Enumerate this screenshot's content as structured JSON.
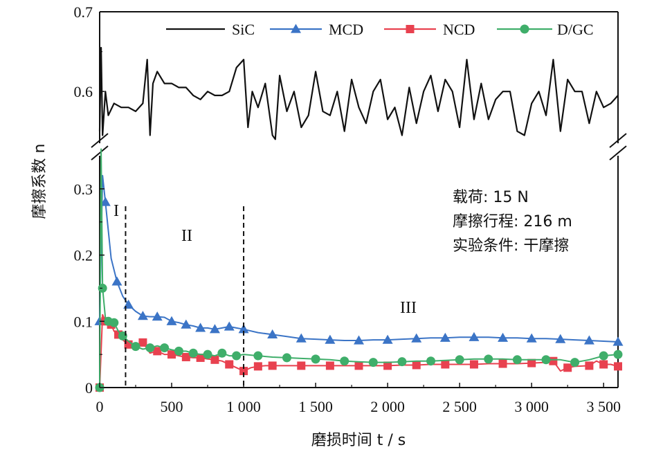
{
  "chart_data": {
    "type": "line",
    "xlabel": "磨损时间 t / s",
    "ylabel": "摩擦系数 n",
    "xlim": [
      0,
      3600
    ],
    "ylim_lower": [
      0,
      0.35
    ],
    "ylim_upper": [
      0.535,
      0.7
    ],
    "y_axis_break": true,
    "grid": false,
    "legend_position": "top-right",
    "x_ticks": [
      0,
      500,
      1000,
      1500,
      2000,
      2500,
      3000,
      3500
    ],
    "x_tick_labels": [
      "0",
      "500",
      "1 000",
      "1 500",
      "2 000",
      "2 500",
      "3 000",
      "3 500"
    ],
    "y_ticks_lower": [
      0,
      0.1,
      0.2,
      0.3
    ],
    "y_tick_labels_lower": [
      "0",
      "0.1",
      "0.2",
      "0.3"
    ],
    "y_ticks_upper": [
      0.6,
      0.7
    ],
    "y_tick_labels_upper": [
      "0.6",
      "0.7"
    ],
    "series": [
      {
        "name": "SiC",
        "color": "#111111",
        "marker": "none",
        "x": [
          0,
          10,
          20,
          40,
          60,
          100,
          150,
          200,
          250,
          300,
          330,
          350,
          370,
          400,
          450,
          500,
          550,
          600,
          650,
          700,
          750,
          800,
          850,
          900,
          950,
          1000,
          1030,
          1060,
          1100,
          1150,
          1200,
          1220,
          1250,
          1300,
          1350,
          1400,
          1450,
          1500,
          1550,
          1600,
          1650,
          1700,
          1750,
          1800,
          1850,
          1900,
          1950,
          2000,
          2050,
          2100,
          2150,
          2200,
          2250,
          2300,
          2350,
          2400,
          2450,
          2500,
          2550,
          2600,
          2650,
          2700,
          2750,
          2800,
          2850,
          2900,
          2950,
          3000,
          3050,
          3100,
          3150,
          3200,
          3250,
          3300,
          3350,
          3400,
          3450,
          3500,
          3550,
          3600
        ],
        "y": [
          0.55,
          0.655,
          0.545,
          0.6,
          0.57,
          0.585,
          0.58,
          0.58,
          0.575,
          0.585,
          0.64,
          0.545,
          0.61,
          0.625,
          0.61,
          0.61,
          0.605,
          0.605,
          0.595,
          0.59,
          0.6,
          0.595,
          0.595,
          0.6,
          0.63,
          0.64,
          0.555,
          0.6,
          0.58,
          0.61,
          0.545,
          0.54,
          0.62,
          0.575,
          0.6,
          0.555,
          0.57,
          0.625,
          0.575,
          0.57,
          0.6,
          0.55,
          0.615,
          0.58,
          0.56,
          0.6,
          0.615,
          0.565,
          0.58,
          0.545,
          0.605,
          0.56,
          0.6,
          0.62,
          0.575,
          0.615,
          0.6,
          0.555,
          0.64,
          0.565,
          0.61,
          0.565,
          0.59,
          0.6,
          0.6,
          0.55,
          0.545,
          0.585,
          0.6,
          0.57,
          0.64,
          0.55,
          0.615,
          0.6,
          0.6,
          0.56,
          0.6,
          0.58,
          0.585,
          0.595
        ]
      },
      {
        "name": "MCD",
        "color": "#3b74c6",
        "marker": "triangle",
        "x": [
          0,
          20,
          40,
          80,
          120,
          160,
          200,
          250,
          300,
          350,
          400,
          450,
          500,
          550,
          600,
          650,
          700,
          750,
          800,
          850,
          900,
          950,
          1000,
          1100,
          1200,
          1300,
          1400,
          1500,
          1600,
          1700,
          1800,
          1900,
          2000,
          2100,
          2200,
          2300,
          2400,
          2500,
          2600,
          2700,
          2800,
          2900,
          3000,
          3100,
          3200,
          3300,
          3400,
          3500,
          3600
        ],
        "y": [
          0.1,
          0.32,
          0.28,
          0.195,
          0.16,
          0.138,
          0.125,
          0.115,
          0.108,
          0.107,
          0.107,
          0.106,
          0.1,
          0.098,
          0.095,
          0.093,
          0.09,
          0.09,
          0.088,
          0.09,
          0.092,
          0.09,
          0.088,
          0.083,
          0.08,
          0.077,
          0.074,
          0.073,
          0.072,
          0.071,
          0.071,
          0.072,
          0.072,
          0.073,
          0.074,
          0.075,
          0.075,
          0.076,
          0.076,
          0.076,
          0.075,
          0.075,
          0.074,
          0.074,
          0.073,
          0.072,
          0.071,
          0.07,
          0.069
        ]
      },
      {
        "name": "NCD",
        "color": "#e8414f",
        "marker": "square",
        "x": [
          0,
          20,
          40,
          60,
          80,
          100,
          130,
          160,
          200,
          250,
          300,
          350,
          400,
          450,
          500,
          550,
          600,
          650,
          700,
          750,
          800,
          850,
          900,
          950,
          1000,
          1050,
          1100,
          1150,
          1200,
          1300,
          1400,
          1500,
          1600,
          1700,
          1800,
          1900,
          2000,
          2100,
          2200,
          2300,
          2400,
          2500,
          2600,
          2700,
          2800,
          2900,
          3000,
          3100,
          3150,
          3200,
          3250,
          3300,
          3400,
          3450,
          3500,
          3550,
          3600
        ],
        "y": [
          0,
          0.11,
          0.1,
          0.105,
          0.095,
          0.085,
          0.08,
          0.072,
          0.065,
          0.062,
          0.068,
          0.052,
          0.055,
          0.05,
          0.05,
          0.048,
          0.046,
          0.045,
          0.045,
          0.043,
          0.042,
          0.04,
          0.035,
          0.03,
          0.025,
          0.03,
          0.032,
          0.033,
          0.033,
          0.033,
          0.033,
          0.033,
          0.033,
          0.033,
          0.033,
          0.033,
          0.033,
          0.034,
          0.034,
          0.035,
          0.035,
          0.035,
          0.035,
          0.036,
          0.036,
          0.036,
          0.037,
          0.038,
          0.04,
          0.025,
          0.03,
          0.032,
          0.033,
          0.04,
          0.035,
          0.035,
          0.032
        ]
      },
      {
        "name": "D/GC",
        "color": "#3fae6a",
        "marker": "circle",
        "x": [
          0,
          10,
          20,
          40,
          60,
          80,
          100,
          130,
          160,
          200,
          250,
          300,
          350,
          400,
          450,
          500,
          550,
          600,
          650,
          700,
          750,
          800,
          850,
          900,
          950,
          1000,
          1100,
          1200,
          1300,
          1400,
          1500,
          1600,
          1700,
          1800,
          1900,
          2000,
          2100,
          2200,
          2300,
          2400,
          2500,
          2600,
          2700,
          2800,
          2900,
          3000,
          3100,
          3200,
          3300,
          3400,
          3500,
          3600
        ],
        "y": [
          0,
          0.36,
          0.15,
          0.105,
          0.1,
          0.1,
          0.098,
          0.085,
          0.078,
          0.07,
          0.062,
          0.058,
          0.06,
          0.063,
          0.06,
          0.057,
          0.055,
          0.055,
          0.052,
          0.05,
          0.05,
          0.048,
          0.052,
          0.048,
          0.048,
          0.05,
          0.048,
          0.046,
          0.045,
          0.044,
          0.043,
          0.042,
          0.04,
          0.039,
          0.038,
          0.038,
          0.039,
          0.04,
          0.04,
          0.041,
          0.042,
          0.043,
          0.043,
          0.043,
          0.042,
          0.042,
          0.042,
          0.042,
          0.038,
          0.042,
          0.048,
          0.05
        ]
      }
    ],
    "stage_labels": [
      "I",
      "II",
      "III"
    ],
    "stage_boundaries_x": [
      180,
      1000
    ],
    "annotations": [
      "载荷: 15 N",
      "摩擦行程: 216 m",
      "实验条件: 干摩擦"
    ]
  }
}
